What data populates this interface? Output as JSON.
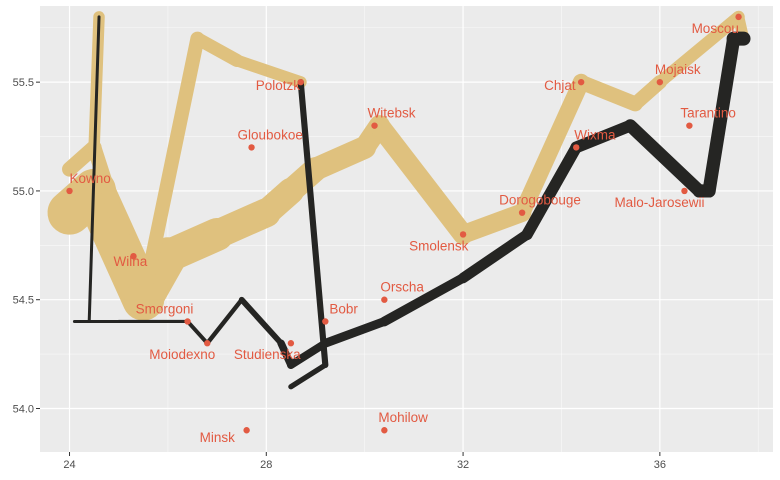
{
  "chart_data": {
    "type": "line",
    "title": "",
    "xlabel": "",
    "ylabel": "",
    "xlim": [
      23.4,
      38.3
    ],
    "ylim": [
      53.8,
      55.85
    ],
    "x_ticks": [
      24,
      28,
      32,
      36
    ],
    "x_tick_labels": [
      "24",
      "28",
      "32",
      "36"
    ],
    "y_ticks": [
      54.0,
      54.5,
      55.0,
      55.5
    ],
    "y_tick_labels": [
      "54.0",
      "54.5",
      "55.0",
      "55.5"
    ],
    "grid": true,
    "legend": "none",
    "colors": {
      "panel": "#ebebeb",
      "grid_major": "#ffffff",
      "advance": "#dfc17e",
      "retreat": "#252523",
      "city": "#e25a42",
      "tick_text": "#4d4d4d"
    },
    "series": [
      {
        "direction": "advance",
        "points": [
          {
            "x": 24.0,
            "y": 54.9,
            "width": 1
          },
          {
            "x": 24.5,
            "y": 55.0,
            "width": 0.95
          },
          {
            "x": 25.5,
            "y": 54.5,
            "width": 0.86
          },
          {
            "x": 26.0,
            "y": 54.7,
            "width": 0.75
          },
          {
            "x": 27.0,
            "y": 54.8,
            "width": 0.66
          },
          {
            "x": 28.0,
            "y": 54.9,
            "width": 0.6
          },
          {
            "x": 28.5,
            "y": 55.0,
            "width": 0.55
          },
          {
            "x": 29.0,
            "y": 55.1,
            "width": 0.52
          },
          {
            "x": 30.0,
            "y": 55.2,
            "width": 0.48
          },
          {
            "x": 30.3,
            "y": 55.3,
            "width": 0.46
          },
          {
            "x": 32.0,
            "y": 54.8,
            "width": 0.42
          },
          {
            "x": 33.2,
            "y": 54.9,
            "width": 0.38
          },
          {
            "x": 34.4,
            "y": 55.5,
            "width": 0.34
          },
          {
            "x": 35.5,
            "y": 55.4,
            "width": 0.32
          },
          {
            "x": 36.0,
            "y": 55.5,
            "width": 0.28
          },
          {
            "x": 37.6,
            "y": 55.8,
            "width": 0.26
          },
          {
            "x": 37.7,
            "y": 55.7,
            "width": 0.25
          }
        ]
      },
      {
        "direction": "advance",
        "points": [
          {
            "x": 24.0,
            "y": 55.1,
            "width": 0.28
          },
          {
            "x": 24.5,
            "y": 55.2,
            "width": 0.26
          },
          {
            "x": 24.6,
            "y": 55.8,
            "width": 0.12
          }
        ]
      },
      {
        "direction": "advance",
        "points": [
          {
            "x": 24.0,
            "y": 55.1,
            "width": 0.34
          },
          {
            "x": 24.5,
            "y": 55.2,
            "width": 0.33
          },
          {
            "x": 25.5,
            "y": 54.5,
            "width": 0.32
          },
          {
            "x": 26.6,
            "y": 55.7,
            "width": 0.3
          },
          {
            "x": 27.4,
            "y": 55.6,
            "width": 0.27
          },
          {
            "x": 28.7,
            "y": 55.5,
            "width": 0.26
          }
        ]
      },
      {
        "direction": "retreat",
        "points": [
          {
            "x": 37.7,
            "y": 55.7,
            "width": 0.32
          },
          {
            "x": 37.5,
            "y": 55.7,
            "width": 0.3
          },
          {
            "x": 37.0,
            "y": 55.0,
            "width": 0.3
          },
          {
            "x": 36.8,
            "y": 55.0,
            "width": 0.29
          },
          {
            "x": 35.4,
            "y": 55.3,
            "width": 0.27
          },
          {
            "x": 34.3,
            "y": 55.2,
            "width": 0.26
          },
          {
            "x": 33.3,
            "y": 54.8,
            "width": 0.24
          },
          {
            "x": 32.0,
            "y": 54.6,
            "width": 0.22
          },
          {
            "x": 30.4,
            "y": 54.4,
            "width": 0.2
          },
          {
            "x": 29.2,
            "y": 54.3,
            "width": 0.18
          },
          {
            "x": 28.5,
            "y": 54.2,
            "width": 0.17
          },
          {
            "x": 28.3,
            "y": 54.3,
            "width": 0.13
          },
          {
            "x": 27.5,
            "y": 54.5,
            "width": 0.1
          },
          {
            "x": 26.8,
            "y": 54.3,
            "width": 0.09
          },
          {
            "x": 26.4,
            "y": 54.4,
            "width": 0.07
          },
          {
            "x": 25.0,
            "y": 54.4,
            "width": 0.06
          },
          {
            "x": 24.4,
            "y": 54.4,
            "width": 0.04
          },
          {
            "x": 24.2,
            "y": 54.4,
            "width": 0.03
          },
          {
            "x": 24.1,
            "y": 54.4,
            "width": 0.02
          }
        ]
      },
      {
        "direction": "retreat",
        "points": [
          {
            "x": 28.7,
            "y": 55.5,
            "width": 0.14
          },
          {
            "x": 29.2,
            "y": 54.2,
            "width": 0.12
          },
          {
            "x": 28.5,
            "y": 54.1,
            "width": 0.11
          }
        ]
      },
      {
        "direction": "retreat",
        "points": [
          {
            "x": 24.4,
            "y": 54.4,
            "width": 0.05
          },
          {
            "x": 24.6,
            "y": 55.8,
            "width": 0.03
          }
        ]
      }
    ],
    "cities": [
      {
        "name": "Kowno",
        "x": 24.0,
        "y": 55.0
      },
      {
        "name": "Wilna",
        "x": 25.3,
        "y": 54.7
      },
      {
        "name": "Smorgoni",
        "x": 26.4,
        "y": 54.4
      },
      {
        "name": "Moiodexno",
        "x": 26.8,
        "y": 54.3
      },
      {
        "name": "Gloubokoe",
        "x": 27.7,
        "y": 55.2
      },
      {
        "name": "Minsk",
        "x": 27.6,
        "y": 53.9
      },
      {
        "name": "Studienska",
        "x": 28.5,
        "y": 54.3
      },
      {
        "name": "Polotzk",
        "x": 28.7,
        "y": 55.5
      },
      {
        "name": "Bobr",
        "x": 29.2,
        "y": 54.4
      },
      {
        "name": "Witebsk",
        "x": 30.2,
        "y": 55.3
      },
      {
        "name": "Orscha",
        "x": 30.4,
        "y": 54.5
      },
      {
        "name": "Mohilow",
        "x": 30.4,
        "y": 53.9
      },
      {
        "name": "Smolensk",
        "x": 32.0,
        "y": 54.8
      },
      {
        "name": "Dorogobouge",
        "x": 33.2,
        "y": 54.9
      },
      {
        "name": "Wixma",
        "x": 34.3,
        "y": 55.2
      },
      {
        "name": "Chjat",
        "x": 34.4,
        "y": 55.5
      },
      {
        "name": "Mojaisk",
        "x": 36.0,
        "y": 55.5
      },
      {
        "name": "Tarantino",
        "x": 36.6,
        "y": 55.3
      },
      {
        "name": "Malo-Jarosewii",
        "x": 36.5,
        "y": 55.0
      },
      {
        "name": "Moscou",
        "x": 37.6,
        "y": 55.8
      }
    ]
  }
}
